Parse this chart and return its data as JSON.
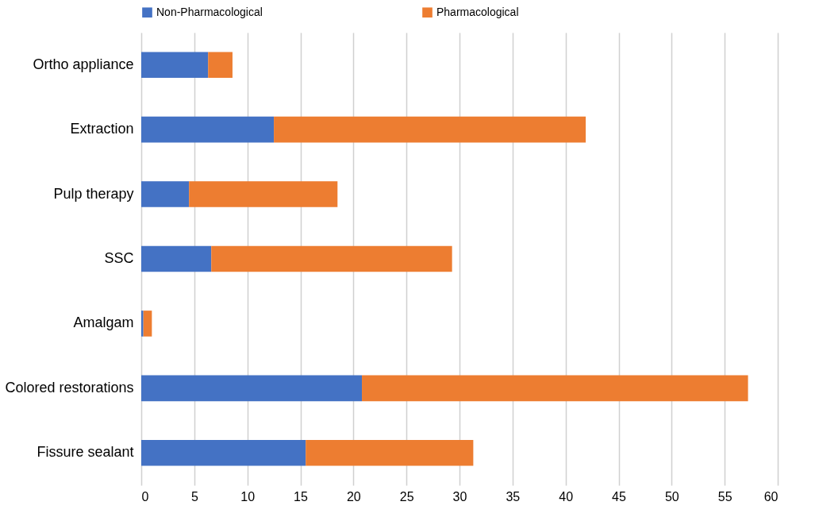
{
  "chart_data": {
    "type": "bar",
    "orientation": "horizontal",
    "stacked": true,
    "categories": [
      "Ortho appliance",
      "Extraction",
      "Pulp therapy",
      "SSC",
      "Amalgam",
      "Colored restorations",
      "Fissure sealant"
    ],
    "series": [
      {
        "name": "Non-Pharmacological",
        "color": "#4472c4",
        "values": [
          6.3,
          12.5,
          4.5,
          6.6,
          0.2,
          20.8,
          15.5
        ]
      },
      {
        "name": "Pharmacological",
        "color": "#ed7d31",
        "values": [
          2.3,
          29.4,
          14.0,
          22.7,
          0.8,
          36.4,
          15.8
        ]
      }
    ],
    "xlim": [
      0,
      60
    ],
    "xticks": [
      0,
      5,
      10,
      15,
      20,
      25,
      30,
      35,
      40,
      45,
      50,
      55,
      60
    ],
    "grid": "x",
    "legend": "top"
  }
}
